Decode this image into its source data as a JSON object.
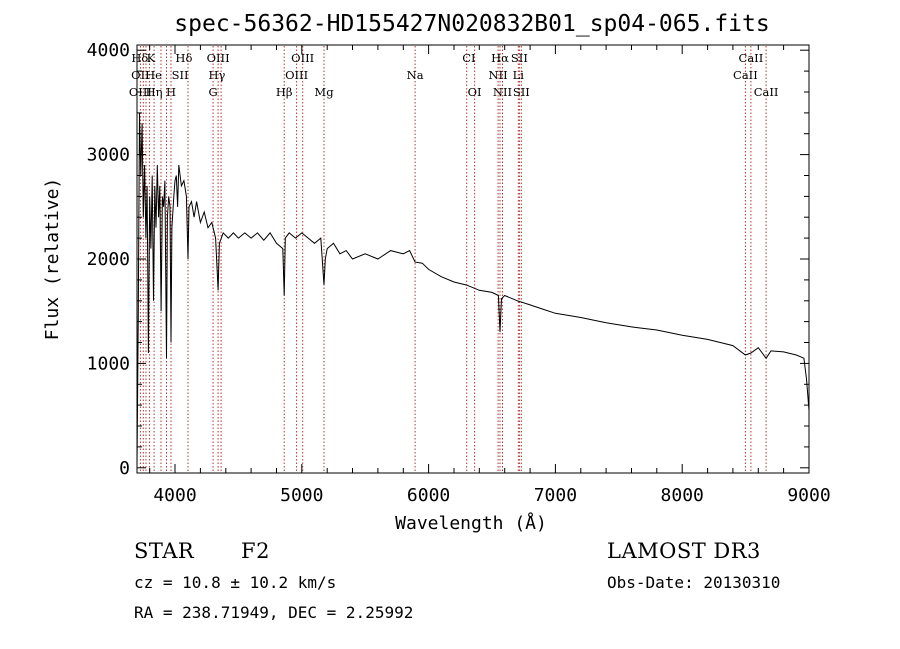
{
  "chart_data": {
    "type": "line",
    "title": "spec-56362-HD155427N020832B01_sp04-065.fits",
    "xlabel": "Wavelength (Å)",
    "ylabel": "Flux (relative)",
    "xlim": [
      3700,
      9000
    ],
    "ylim": [
      -50,
      4050
    ],
    "xticks": [
      4000,
      5000,
      6000,
      7000,
      8000,
      9000
    ],
    "yticks": [
      0,
      1000,
      2000,
      3000,
      4000
    ],
    "spectrum": {
      "name": "flux",
      "x": [
        3700,
        3710,
        3720,
        3730,
        3740,
        3750,
        3760,
        3770,
        3780,
        3790,
        3800,
        3810,
        3820,
        3830,
        3840,
        3850,
        3860,
        3870,
        3880,
        3890,
        3900,
        3910,
        3920,
        3933,
        3940,
        3950,
        3960,
        3968,
        3975,
        3990,
        4000,
        4010,
        4020,
        4030,
        4050,
        4070,
        4090,
        4102,
        4110,
        4130,
        4150,
        4170,
        4200,
        4230,
        4260,
        4290,
        4320,
        4340,
        4350,
        4380,
        4420,
        4460,
        4500,
        4550,
        4600,
        4650,
        4700,
        4750,
        4800,
        4850,
        4861,
        4870,
        4900,
        4950,
        5000,
        5050,
        5100,
        5150,
        5175,
        5185,
        5200,
        5250,
        5300,
        5350,
        5400,
        5500,
        5600,
        5700,
        5800,
        5850,
        5893,
        5950,
        6000,
        6100,
        6200,
        6300,
        6400,
        6500,
        6550,
        6563,
        6575,
        6600,
        6700,
        6800,
        6900,
        7000,
        7200,
        7400,
        7600,
        7800,
        8000,
        8200,
        8400,
        8498,
        8542,
        8600,
        8662,
        8700,
        8800,
        8900,
        8960,
        8980,
        9000
      ],
      "y": [
        0,
        1500,
        3400,
        2800,
        3300,
        2400,
        2900,
        2200,
        2700,
        1100,
        2600,
        2100,
        2800,
        1600,
        2700,
        2300,
        2900,
        2400,
        2700,
        1500,
        2600,
        2500,
        2750,
        1050,
        2400,
        2600,
        2500,
        1200,
        2300,
        2600,
        2750,
        2800,
        2500,
        2900,
        2700,
        2750,
        2600,
        2000,
        2500,
        2550,
        2400,
        2550,
        2350,
        2450,
        2300,
        2350,
        2200,
        1700,
        2150,
        2250,
        2200,
        2250,
        2200,
        2250,
        2200,
        2250,
        2180,
        2250,
        2150,
        2100,
        1650,
        2200,
        2250,
        2200,
        2250,
        2200,
        2150,
        2200,
        1750,
        2000,
        2100,
        2150,
        2050,
        2080,
        2000,
        2050,
        2000,
        2080,
        2050,
        2080,
        1970,
        1960,
        1900,
        1830,
        1780,
        1750,
        1700,
        1680,
        1650,
        1300,
        1620,
        1650,
        1600,
        1560,
        1520,
        1480,
        1440,
        1390,
        1350,
        1320,
        1270,
        1230,
        1170,
        1080,
        1100,
        1150,
        1050,
        1120,
        1110,
        1080,
        1050,
        850,
        550
      ]
    },
    "lines": [
      {
        "label": "Hδ",
        "x": 3722,
        "row": 0
      },
      {
        "label": "K",
        "x": 3810,
        "row": 0
      },
      {
        "label": "Hδ",
        "x": 4070,
        "row": 0
      },
      {
        "label": "OIII",
        "x": 4340,
        "row": 0
      },
      {
        "label": "OIII",
        "x": 5007,
        "row": 0
      },
      {
        "label": "CI",
        "x": 6318,
        "row": 0
      },
      {
        "label": "Hα",
        "x": 6563,
        "row": 0
      },
      {
        "label": "SII",
        "x": 6716,
        "row": 0
      },
      {
        "label": "CaII",
        "x": 8542,
        "row": 0
      },
      {
        "label": "OII",
        "x": 3727,
        "row": 1
      },
      {
        "label": "He",
        "x": 3830,
        "row": 1
      },
      {
        "label": "SII",
        "x": 4040,
        "row": 1
      },
      {
        "label": "Hγ",
        "x": 4330,
        "row": 1
      },
      {
        "label": "OIII",
        "x": 4959,
        "row": 1
      },
      {
        "label": "Na",
        "x": 5893,
        "row": 1
      },
      {
        "label": "NII",
        "x": 6548,
        "row": 1
      },
      {
        "label": "Li",
        "x": 6707,
        "row": 1
      },
      {
        "label": "CaII",
        "x": 8498,
        "row": 1
      },
      {
        "label": "OIII",
        "x": 3727,
        "row": 2
      },
      {
        "label": "Hη",
        "x": 3835,
        "row": 2
      },
      {
        "label": "H",
        "x": 3968,
        "row": 2
      },
      {
        "label": "G",
        "x": 4300,
        "row": 2
      },
      {
        "label": "Hβ",
        "x": 4861,
        "row": 2
      },
      {
        "label": "Mg",
        "x": 5175,
        "row": 2
      },
      {
        "label": "OI",
        "x": 6363,
        "row": 2
      },
      {
        "label": "NII",
        "x": 6583,
        "row": 2
      },
      {
        "label": "SII",
        "x": 6731,
        "row": 2
      },
      {
        "label": "CaII",
        "x": 8662,
        "row": 2
      }
    ],
    "line_positions": [
      3727,
      3750,
      3771,
      3798,
      3835,
      3889,
      3933,
      3968,
      4102,
      4300,
      4340,
      4363,
      4861,
      4959,
      5007,
      5175,
      5893,
      6300,
      6363,
      6548,
      6563,
      6583,
      6707,
      6716,
      6731,
      8498,
      8542,
      8662
    ]
  },
  "info": {
    "object_class": "STAR",
    "subclass": "F2",
    "survey": "LAMOST DR3",
    "cz": "cz = 10.8 ± 10.2 km/s",
    "obs_date": "Obs-Date: 20130310",
    "coords": "RA = 238.71949, DEC =    2.25992"
  },
  "colors": {
    "axes": "#000000",
    "spectrum": "#000000",
    "line_markers": "#b03a2e"
  }
}
